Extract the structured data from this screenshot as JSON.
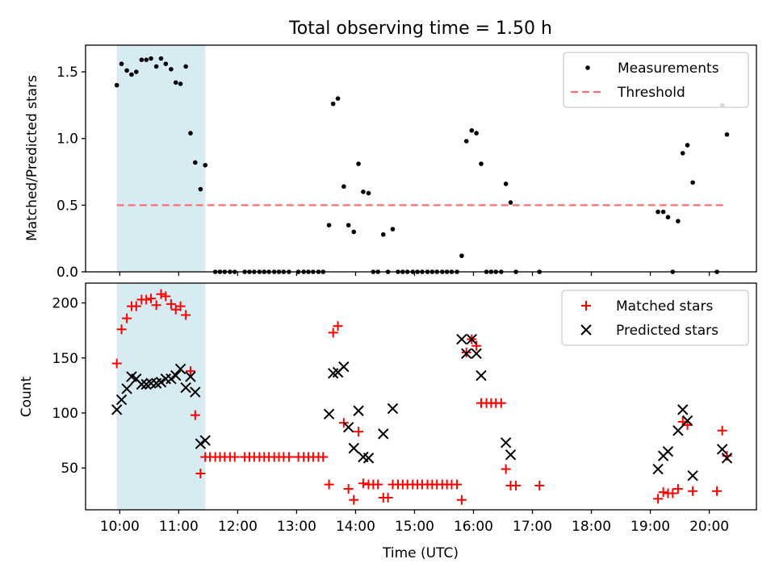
{
  "figure": {
    "title": "Total observing time = 1.50 h",
    "xlabel": "Time (UTC)",
    "x_tick_labels": [
      "10:00",
      "11:00",
      "12:00",
      "13:00",
      "14:00",
      "15:00",
      "16:00",
      "17:00",
      "18:00",
      "19:00",
      "20:00"
    ],
    "highlight_span": {
      "from_hours": 9.95,
      "to_hours": 11.45,
      "color": "#add8e6"
    }
  },
  "chart_data": [
    {
      "type": "scatter",
      "ylabel": "Matched/Predicted stars",
      "xlim": [
        9.42,
        20.8
      ],
      "ylim": [
        0,
        1.7
      ],
      "yticks": [
        0.0,
        0.5,
        1.0,
        1.5
      ],
      "ytick_labels": [
        "0.0",
        "0.5",
        "1.0",
        "1.5"
      ],
      "legend_position": "top-right",
      "threshold": {
        "name": "Threshold",
        "value": 0.5,
        "x_range": [
          9.95,
          20.3
        ],
        "color": "#ff6f6f"
      },
      "series": [
        {
          "name": "Measurements",
          "marker": "dot",
          "color": "#000000",
          "points": [
            [
              9.95,
              1.4
            ],
            [
              10.03,
              1.56
            ],
            [
              10.12,
              1.51
            ],
            [
              10.2,
              1.48
            ],
            [
              10.28,
              1.5
            ],
            [
              10.37,
              1.59
            ],
            [
              10.45,
              1.59
            ],
            [
              10.53,
              1.6
            ],
            [
              10.62,
              1.54
            ],
            [
              10.7,
              1.6
            ],
            [
              10.78,
              1.56
            ],
            [
              10.87,
              1.52
            ],
            [
              10.95,
              1.42
            ],
            [
              11.03,
              1.41
            ],
            [
              11.12,
              1.54
            ],
            [
              11.2,
              1.04
            ],
            [
              11.28,
              0.82
            ],
            [
              11.37,
              0.62
            ],
            [
              11.45,
              0.8
            ],
            [
              11.62,
              0
            ],
            [
              11.7,
              0
            ],
            [
              11.78,
              0
            ],
            [
              11.87,
              0
            ],
            [
              11.95,
              0
            ],
            [
              12.12,
              0
            ],
            [
              12.2,
              0
            ],
            [
              12.28,
              0
            ],
            [
              12.37,
              0
            ],
            [
              12.45,
              0
            ],
            [
              12.53,
              0
            ],
            [
              12.62,
              0
            ],
            [
              12.7,
              0
            ],
            [
              12.78,
              0
            ],
            [
              12.87,
              0
            ],
            [
              13.03,
              0
            ],
            [
              13.12,
              0
            ],
            [
              13.2,
              0
            ],
            [
              13.28,
              0
            ],
            [
              13.37,
              0
            ],
            [
              13.45,
              0
            ],
            [
              13.55,
              0.35
            ],
            [
              13.62,
              1.26
            ],
            [
              13.7,
              1.3
            ],
            [
              13.8,
              0.64
            ],
            [
              13.88,
              0.35
            ],
            [
              13.97,
              0.3
            ],
            [
              14.05,
              0.81
            ],
            [
              14.13,
              0.6
            ],
            [
              14.22,
              0.59
            ],
            [
              14.3,
              0
            ],
            [
              14.38,
              0
            ],
            [
              14.47,
              0.28
            ],
            [
              14.55,
              0
            ],
            [
              14.63,
              0.32
            ],
            [
              14.72,
              0
            ],
            [
              14.8,
              0
            ],
            [
              14.88,
              0
            ],
            [
              14.97,
              0
            ],
            [
              15.05,
              0
            ],
            [
              15.13,
              0
            ],
            [
              15.22,
              0
            ],
            [
              15.3,
              0
            ],
            [
              15.38,
              0
            ],
            [
              15.47,
              0
            ],
            [
              15.55,
              0
            ],
            [
              15.63,
              0
            ],
            [
              15.72,
              0
            ],
            [
              15.8,
              0.12
            ],
            [
              15.88,
              0.98
            ],
            [
              15.97,
              1.06
            ],
            [
              16.05,
              1.04
            ],
            [
              16.13,
              0.81
            ],
            [
              16.22,
              0
            ],
            [
              16.3,
              0
            ],
            [
              16.38,
              0
            ],
            [
              16.47,
              0
            ],
            [
              16.55,
              0.66
            ],
            [
              16.63,
              0.52
            ],
            [
              16.72,
              0
            ],
            [
              17.12,
              0
            ],
            [
              19.13,
              0.45
            ],
            [
              19.22,
              0.45
            ],
            [
              19.3,
              0.41
            ],
            [
              19.38,
              0
            ],
            [
              19.47,
              0.38
            ],
            [
              19.55,
              0.89
            ],
            [
              19.63,
              0.95
            ],
            [
              19.72,
              0.67
            ],
            [
              20.13,
              0
            ],
            [
              20.22,
              1.25
            ],
            [
              20.3,
              1.03
            ]
          ]
        }
      ]
    },
    {
      "type": "scatter",
      "ylabel": "Count",
      "xlim": [
        9.42,
        20.8
      ],
      "ylim": [
        12,
        218
      ],
      "yticks": [
        50,
        100,
        150,
        200
      ],
      "ytick_labels": [
        "50",
        "100",
        "150",
        "200"
      ],
      "legend_position": "top-right",
      "series": [
        {
          "name": "Matched stars",
          "marker": "plus",
          "color": "#ff0000",
          "points": [
            [
              9.95,
              145
            ],
            [
              10.03,
              176
            ],
            [
              10.12,
              186
            ],
            [
              10.2,
              197
            ],
            [
              10.28,
              197
            ],
            [
              10.37,
              203
            ],
            [
              10.45,
              203
            ],
            [
              10.53,
              204
            ],
            [
              10.62,
              198
            ],
            [
              10.7,
              208
            ],
            [
              10.78,
              206
            ],
            [
              10.87,
              199
            ],
            [
              10.95,
              194
            ],
            [
              11.03,
              197
            ],
            [
              11.12,
              189
            ],
            [
              11.2,
              138
            ],
            [
              11.28,
              98
            ],
            [
              11.37,
              45
            ],
            [
              11.45,
              60
            ],
            [
              11.53,
              60
            ],
            [
              11.62,
              60
            ],
            [
              11.7,
              60
            ],
            [
              11.78,
              60
            ],
            [
              11.87,
              60
            ],
            [
              11.95,
              60
            ],
            [
              12.12,
              60
            ],
            [
              12.2,
              60
            ],
            [
              12.28,
              60
            ],
            [
              12.37,
              60
            ],
            [
              12.45,
              60
            ],
            [
              12.53,
              60
            ],
            [
              12.62,
              60
            ],
            [
              12.7,
              60
            ],
            [
              12.78,
              60
            ],
            [
              12.87,
              60
            ],
            [
              13.03,
              60
            ],
            [
              13.12,
              60
            ],
            [
              13.2,
              60
            ],
            [
              13.28,
              60
            ],
            [
              13.37,
              60
            ],
            [
              13.45,
              60
            ],
            [
              13.55,
              35
            ],
            [
              13.62,
              173
            ],
            [
              13.7,
              179
            ],
            [
              13.8,
              91
            ],
            [
              13.88,
              31
            ],
            [
              13.97,
              21
            ],
            [
              14.05,
              83
            ],
            [
              14.13,
              36
            ],
            [
              14.22,
              35
            ],
            [
              14.3,
              35
            ],
            [
              14.38,
              35
            ],
            [
              14.47,
              23
            ],
            [
              14.55,
              23
            ],
            [
              14.63,
              35
            ],
            [
              14.72,
              35
            ],
            [
              14.8,
              35
            ],
            [
              14.88,
              35
            ],
            [
              14.97,
              35
            ],
            [
              15.05,
              35
            ],
            [
              15.13,
              35
            ],
            [
              15.22,
              35
            ],
            [
              15.3,
              35
            ],
            [
              15.38,
              35
            ],
            [
              15.47,
              35
            ],
            [
              15.55,
              35
            ],
            [
              15.63,
              35
            ],
            [
              15.72,
              35
            ],
            [
              15.8,
              21
            ],
            [
              15.88,
              155
            ],
            [
              15.97,
              167
            ],
            [
              16.05,
              161
            ],
            [
              16.13,
              109
            ],
            [
              16.22,
              109
            ],
            [
              16.3,
              109
            ],
            [
              16.38,
              109
            ],
            [
              16.47,
              109
            ],
            [
              16.55,
              49
            ],
            [
              16.63,
              34
            ],
            [
              16.72,
              34
            ],
            [
              17.12,
              34
            ],
            [
              19.13,
              22
            ],
            [
              19.22,
              28
            ],
            [
              19.3,
              27
            ],
            [
              19.38,
              27
            ],
            [
              19.47,
              31
            ],
            [
              19.55,
              92
            ],
            [
              19.63,
              89
            ],
            [
              19.72,
              29
            ],
            [
              20.13,
              29
            ],
            [
              20.22,
              84
            ],
            [
              20.3,
              61
            ]
          ]
        },
        {
          "name": "Predicted stars",
          "marker": "x",
          "color": "#000000",
          "points": [
            [
              9.95,
              103
            ],
            [
              10.03,
              112
            ],
            [
              10.12,
              122
            ],
            [
              10.2,
              133
            ],
            [
              10.28,
              131
            ],
            [
              10.37,
              126
            ],
            [
              10.45,
              126
            ],
            [
              10.53,
              127
            ],
            [
              10.62,
              127
            ],
            [
              10.7,
              128
            ],
            [
              10.78,
              131
            ],
            [
              10.87,
              131
            ],
            [
              10.95,
              134
            ],
            [
              11.03,
              140
            ],
            [
              11.12,
              123
            ],
            [
              11.2,
              133
            ],
            [
              11.28,
              119
            ],
            [
              11.37,
              72
            ],
            [
              11.45,
              75
            ],
            [
              13.55,
              99
            ],
            [
              13.62,
              136
            ],
            [
              13.7,
              137
            ],
            [
              13.8,
              142
            ],
            [
              13.88,
              87
            ],
            [
              13.97,
              68
            ],
            [
              14.05,
              102
            ],
            [
              14.13,
              60
            ],
            [
              14.22,
              59
            ],
            [
              14.47,
              81
            ],
            [
              14.63,
              104
            ],
            [
              15.8,
              167
            ],
            [
              15.88,
              154
            ],
            [
              15.97,
              167
            ],
            [
              16.05,
              154
            ],
            [
              16.13,
              134
            ],
            [
              16.55,
              73
            ],
            [
              16.63,
              62
            ],
            [
              19.13,
              49
            ],
            [
              19.22,
              61
            ],
            [
              19.3,
              65
            ],
            [
              19.47,
              84
            ],
            [
              19.55,
              103
            ],
            [
              19.63,
              93
            ],
            [
              19.72,
              43
            ],
            [
              20.22,
              67
            ],
            [
              20.3,
              59
            ]
          ]
        }
      ]
    }
  ]
}
